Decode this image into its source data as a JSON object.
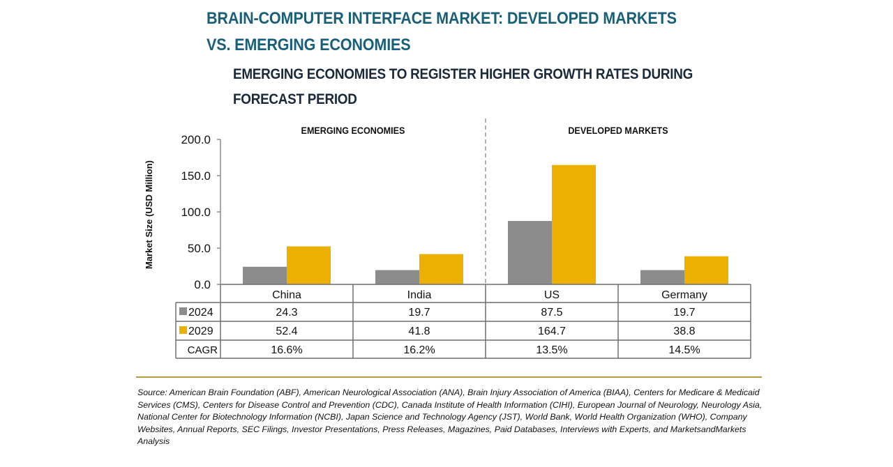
{
  "header": {
    "title_line1": "BRAIN-COMPUTER INTERFACE MARKET: DEVELOPED MARKETS",
    "title_line2": "VS. EMERGING ECONOMIES",
    "subtitle_line1": "EMERGING ECONOMIES TO REGISTER HIGHER GROWTH RATES DURING",
    "subtitle_line2": "FORECAST PERIOD"
  },
  "chart_data": {
    "type": "bar",
    "title": "BRAIN-COMPUTER INTERFACE MARKET: DEVELOPED MARKETS VS. EMERGING ECONOMIES",
    "subtitle": "EMERGING ECONOMIES TO REGISTER HIGHER GROWTH RATES DURING FORECAST PERIOD",
    "xlabel": "",
    "ylabel": "Market Size (USD Million)",
    "ylim": [
      0,
      200
    ],
    "yticks": [
      0,
      50,
      100,
      150,
      200
    ],
    "ytick_labels": [
      "0.0",
      "50.0",
      "100.0",
      "150.0",
      "200.0"
    ],
    "grid": false,
    "categories": [
      "China",
      "India",
      "US",
      "Germany"
    ],
    "groups": [
      {
        "label": "EMERGING ECONOMIES",
        "categories": [
          "China",
          "India"
        ]
      },
      {
        "label": "DEVELOPED MARKETS",
        "categories": [
          "US",
          "Germany"
        ]
      }
    ],
    "series": [
      {
        "name": "2024",
        "color": "#8c8c8c",
        "values": [
          24.3,
          19.7,
          87.5,
          19.7
        ],
        "labels": [
          "24.3",
          "19.7",
          "87.5",
          "19.7"
        ]
      },
      {
        "name": "2029",
        "color": "#ebb000",
        "values": [
          52.4,
          41.8,
          164.7,
          38.8
        ],
        "labels": [
          "52.4",
          "41.8",
          "164.7",
          "38.8"
        ]
      }
    ],
    "cagr": {
      "label": "CAGR",
      "values": [
        "16.6%",
        "16.2%",
        "13.5%",
        "14.5%"
      ]
    },
    "legend": "data-table-left"
  },
  "footer": {
    "source": "Source: American Brain Foundation (ABF), American Neurological Association (ANA), Brain Injury Association of America (BIAA), Centers for Medicare & Medicaid Services (CMS), Centers for Disease Control and Prevention (CDC), Canada Institute of Health Information (CIHI), European Journal of Neurology, Neurology Asia, National Center for Biotechnology Information (NCBI), Japan Science and Technology Agency (JST), World Bank, World Health Organization (WHO), Company Websites, Annual Reports, SEC Filings, Investor Presentations, Press Releases, Magazines, Paid Databases, Interviews with Experts, and MarketsandMarkets Analysis"
  }
}
